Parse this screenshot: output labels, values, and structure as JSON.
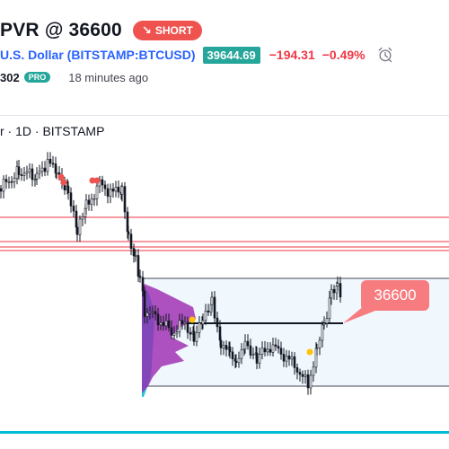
{
  "header": {
    "title": "PVR @ 36600",
    "badge_label": "SHORT",
    "symbol": "U.S. Dollar (BITSTAMP:BTCUSD)",
    "price": "39644.69",
    "change_abs": "−194.31",
    "change_pct": "−0.49%",
    "author_count": "302",
    "author_badge": "PRO",
    "time_ago": "18 minutes ago"
  },
  "chart": {
    "label": "r · 1D · BITSTAMP",
    "callout_label": "36600",
    "colors": {
      "accent": "#2962ff",
      "down": "#f23645",
      "up": "#26a69a",
      "callout": "#f77c80",
      "volume_profile": "#9c27b0",
      "value_area": "#00bcd4"
    }
  },
  "icons": {
    "alarm": "alarm-clock-icon",
    "arrow": "arrow-down-right-icon"
  }
}
